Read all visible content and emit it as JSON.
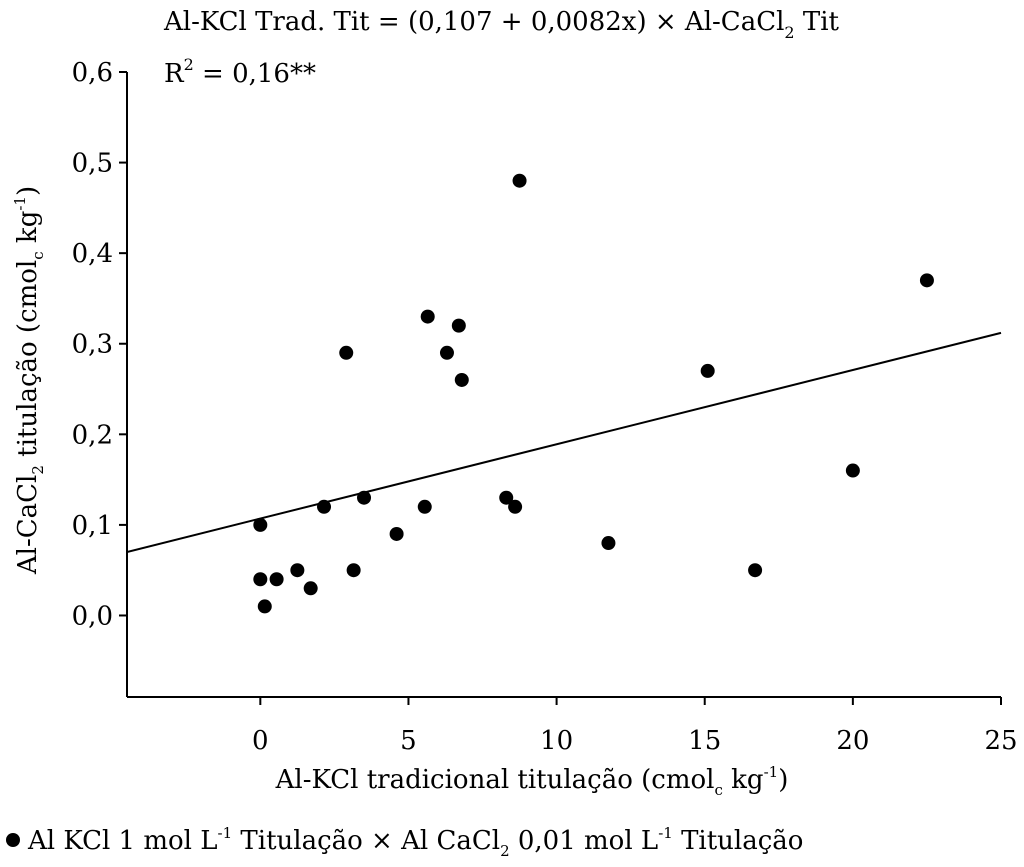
{
  "chart_data": {
    "type": "scatter",
    "annotations": {
      "equation": {
        "prefix": "Al-KCl Trad. Tit = (0,107 + 0,0082x) × Al-CaCl",
        "sub": "2",
        "suffix": " Tit"
      },
      "r2": {
        "prefix": "R",
        "sup": "2",
        "suffix": " = 0,16**"
      }
    },
    "xlabel": {
      "prefix": "Al-KCl tradicional titulação (cmol",
      "sub": "c",
      "middle": " kg",
      "sup": "-1",
      "suffix": ")"
    },
    "ylabel": {
      "prefix": "Al-CaCl",
      "sub": "2",
      "middle": " titulação (cmol",
      "sub2": "c",
      "middle2": " kg",
      "sup": "-1",
      "suffix": ")"
    },
    "xlim": [
      -4.5,
      25
    ],
    "ylim": [
      -0.09,
      0.6
    ],
    "xticks": [
      0,
      5,
      10,
      15,
      20,
      25
    ],
    "xtick_labels": [
      "0",
      "5",
      "10",
      "15",
      "20",
      "25"
    ],
    "yticks": [
      0.0,
      0.1,
      0.2,
      0.3,
      0.4,
      0.5,
      0.6
    ],
    "ytick_labels": [
      "0,0",
      "0,1",
      "0,2",
      "0,3",
      "0,4",
      "0,5",
      "0,6"
    ],
    "grid": false,
    "regression": {
      "intercept": 0.107,
      "slope": 0.0082
    },
    "series": [
      {
        "name": "Al KCl 1 mol L-1 Titulação × Al CaCl2 0,01 mol L-1 Titulação",
        "color": "#000000",
        "points": [
          {
            "x": 0.0,
            "y": 0.1
          },
          {
            "x": 0.0,
            "y": 0.04
          },
          {
            "x": 0.15,
            "y": 0.01
          },
          {
            "x": 0.55,
            "y": 0.04
          },
          {
            "x": 1.25,
            "y": 0.05
          },
          {
            "x": 1.7,
            "y": 0.03
          },
          {
            "x": 2.15,
            "y": 0.12
          },
          {
            "x": 2.9,
            "y": 0.29
          },
          {
            "x": 3.15,
            "y": 0.05
          },
          {
            "x": 3.5,
            "y": 0.13
          },
          {
            "x": 4.6,
            "y": 0.09
          },
          {
            "x": 5.55,
            "y": 0.12
          },
          {
            "x": 5.65,
            "y": 0.33
          },
          {
            "x": 6.3,
            "y": 0.29
          },
          {
            "x": 6.7,
            "y": 0.32
          },
          {
            "x": 6.8,
            "y": 0.26
          },
          {
            "x": 8.3,
            "y": 0.13
          },
          {
            "x": 8.6,
            "y": 0.12
          },
          {
            "x": 8.75,
            "y": 0.48
          },
          {
            "x": 11.75,
            "y": 0.08
          },
          {
            "x": 15.1,
            "y": 0.27
          },
          {
            "x": 16.7,
            "y": 0.05
          },
          {
            "x": 20.0,
            "y": 0.16
          },
          {
            "x": 22.5,
            "y": 0.37
          }
        ]
      }
    ],
    "legend": {
      "position": "bottom",
      "part1": "Al KCl 1 mol L",
      "sup1": "-1",
      "part2": "  Titulação × Al CaCl",
      "sub2": "2",
      "part3": " 0,01 mol L",
      "sup3": "-1",
      "part4": "  Titulação"
    }
  }
}
